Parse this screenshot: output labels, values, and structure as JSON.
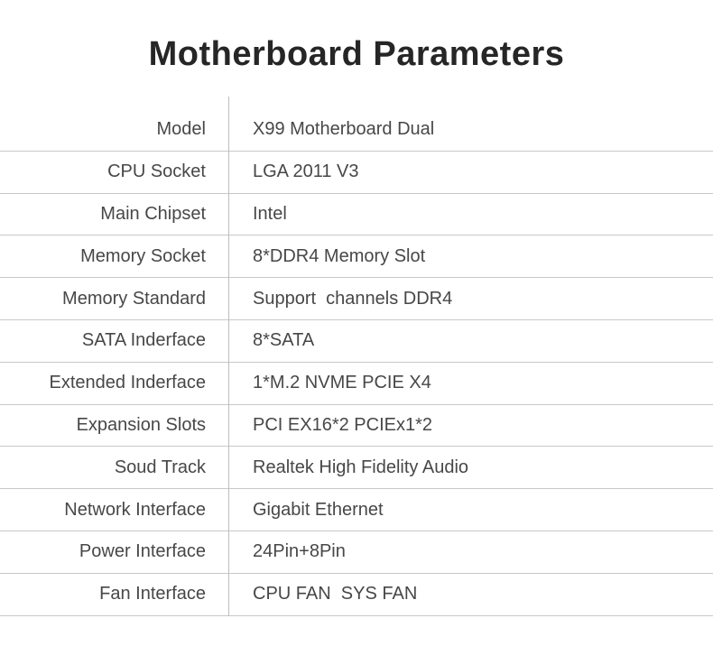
{
  "title": "Motherboard Parameters",
  "colors": {
    "text": "#474747",
    "title": "#262626",
    "horizontal_line": "#c8c8c8",
    "vertical_line": "#bdbdbd",
    "background": "#ffffff"
  },
  "table": {
    "rows": [
      {
        "label": "Model",
        "value": "X99 Motherboard Dual"
      },
      {
        "label": "CPU Socket",
        "value": "LGA 2011 V3"
      },
      {
        "label": "Main Chipset",
        "value": "Intel"
      },
      {
        "label": "Memory Socket",
        "value": "8*DDR4 Memory Slot"
      },
      {
        "label": "Memory Standard",
        "value": "Support  channels DDR4"
      },
      {
        "label": "SATA Inderface",
        "value": "8*SATA"
      },
      {
        "label": "Extended Inderface",
        "value": "1*M.2 NVME PCIE X4"
      },
      {
        "label": "Expansion Slots",
        "value": "PCI EX16*2 PCIEx1*2"
      },
      {
        "label": "Soud Track",
        "value": "Realtek High Fidelity Audio"
      },
      {
        "label": "Network Interface",
        "value": "Gigabit Ethernet"
      },
      {
        "label": "Power Interface",
        "value": "24Pin+8Pin"
      },
      {
        "label": "Fan Interface",
        "value": "CPU FAN  SYS FAN"
      }
    ]
  }
}
